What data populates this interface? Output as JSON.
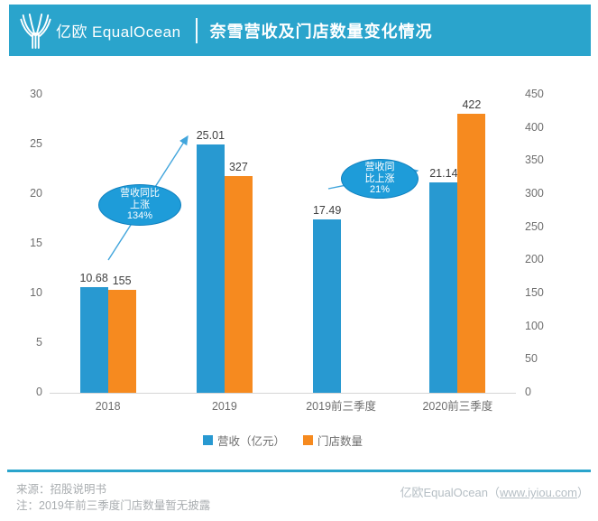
{
  "header": {
    "logo_text_zh": "亿欧",
    "logo_text_en": "EqualOcean",
    "title": "奈雪营收及门店数量变化情况"
  },
  "chart_data": {
    "type": "bar",
    "title": "奈雪营收及门店数量变化情况",
    "categories": [
      "2018",
      "2019",
      "2019前三季度",
      "2020前三季度"
    ],
    "series": [
      {
        "name": "营收（亿元）",
        "axis": "left",
        "color": "#2899D1",
        "values": [
          10.68,
          25.01,
          17.49,
          21.14
        ],
        "labels": [
          "10.68",
          "25.01",
          "17.49",
          "21.14"
        ]
      },
      {
        "name": "门店数量",
        "axis": "right",
        "color": "#F68A1F",
        "values": [
          155,
          327,
          null,
          422
        ],
        "labels": [
          "155",
          "327",
          null,
          "422"
        ]
      }
    ],
    "left_axis": {
      "min": 0,
      "max": 30,
      "step": 5,
      "ticks": [
        0,
        5,
        10,
        15,
        20,
        25,
        30
      ]
    },
    "right_axis": {
      "min": 0,
      "max": 450,
      "step": 50,
      "ticks": [
        0,
        50,
        100,
        150,
        200,
        250,
        300,
        350,
        400,
        450
      ]
    },
    "grid": false,
    "legend_position": "bottom",
    "annotations": [
      {
        "lines": [
          "营收同比",
          "上涨",
          "134%"
        ]
      },
      {
        "lines": [
          "营收同",
          "比上涨",
          "21%"
        ]
      }
    ]
  },
  "footer": {
    "source": "来源：招股说明书",
    "note": "注：2019年前三季度门店数量暂无披露",
    "brand": "亿欧EqualOcean",
    "link_wrap_open": "（",
    "link": "www.iyiou.com",
    "link_wrap_close": "）"
  },
  "colors": {
    "header_background": "#2AA4CC",
    "revenue_bar": "#2899D1",
    "stores_bar": "#F68A1F",
    "annotation_fill": "#1E9CD9",
    "annotation_border": "#0E7FBE",
    "arrow": "#41A5DC",
    "axis_text": "#6E6E6E",
    "value_text": "#404040",
    "footer_text": "#A9ADB0"
  }
}
